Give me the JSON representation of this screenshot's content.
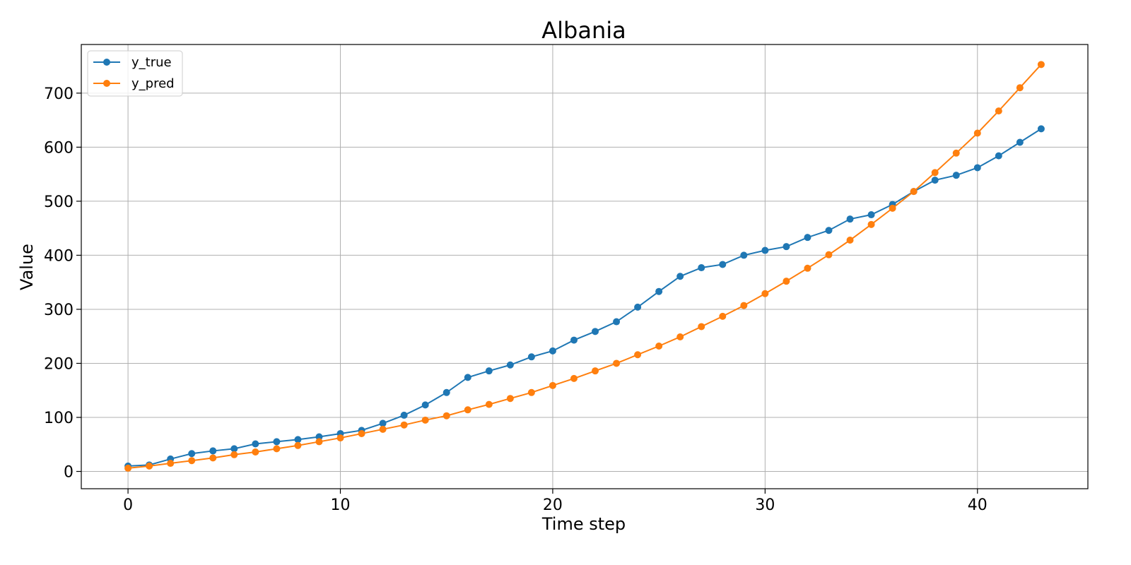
{
  "chart_data": {
    "type": "line",
    "title": "Albania",
    "xlabel": "Time step",
    "ylabel": "Value",
    "xlim": [
      -2.2,
      45.2
    ],
    "ylim": [
      -32,
      790
    ],
    "xticks": [
      0,
      10,
      20,
      30,
      40
    ],
    "yticks": [
      0,
      100,
      200,
      300,
      400,
      500,
      600,
      700
    ],
    "grid": true,
    "legend_position": "top-left",
    "x": [
      0,
      1,
      2,
      3,
      4,
      5,
      6,
      7,
      8,
      9,
      10,
      11,
      12,
      13,
      14,
      15,
      16,
      17,
      18,
      19,
      20,
      21,
      22,
      23,
      24,
      25,
      26,
      27,
      28,
      29,
      30,
      31,
      32,
      33,
      34,
      35,
      36,
      37,
      38,
      39,
      40,
      41,
      42,
      43
    ],
    "series": [
      {
        "name": "y_true",
        "color": "#1f77b4",
        "values": [
          10,
          12,
          23,
          33,
          38,
          42,
          51,
          55,
          59,
          64,
          70,
          76,
          89,
          104,
          123,
          146,
          174,
          186,
          197,
          212,
          223,
          243,
          259,
          277,
          304,
          333,
          361,
          377,
          383,
          400,
          409,
          416,
          433,
          446,
          467,
          475,
          494,
          518,
          539,
          548,
          562,
          584,
          609,
          634
        ]
      },
      {
        "name": "y_pred",
        "color": "#ff7f0e",
        "values": [
          6,
          10,
          15,
          20,
          25,
          31,
          36,
          42,
          48,
          55,
          62,
          70,
          78,
          86,
          95,
          103,
          114,
          124,
          135,
          146,
          159,
          172,
          186,
          200,
          216,
          232,
          249,
          268,
          287,
          307,
          329,
          352,
          376,
          401,
          428,
          457,
          487,
          518,
          553,
          589,
          626,
          667,
          710,
          753
        ]
      }
    ]
  }
}
